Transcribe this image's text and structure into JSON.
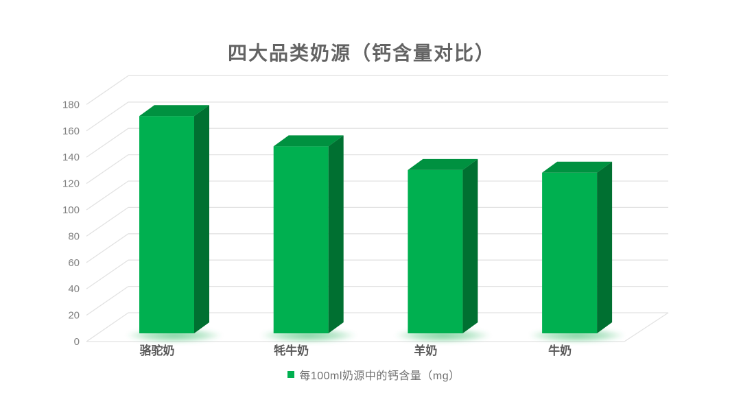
{
  "title": "四大品类奶源（钙含量对比）",
  "legend": {
    "label": "每100ml奶源中的钙含量（mg）",
    "marker_color": "#00B050"
  },
  "colors": {
    "title_text": "#636363",
    "axis_tick_text": "#808080",
    "category_text": "#595959",
    "legend_text": "#6e6e6e",
    "gridline": "#e2e2e2",
    "bar_front": "#00B050",
    "bar_top": "#009140",
    "bar_side": "#007031",
    "glow": "#3dbd6e",
    "background": "#ffffff"
  },
  "chart_data": {
    "type": "bar",
    "variant": "3d-column",
    "title": "四大品类奶源（钙含量对比）",
    "categories": [
      "骆驼奶",
      "牦牛奶",
      "羊奶",
      "牛奶"
    ],
    "series": [
      {
        "name": "每100ml奶源中的钙含量（mg）",
        "values": [
          165,
          142,
          124,
          122
        ]
      }
    ],
    "xlabel": "",
    "ylabel": "",
    "ylim": [
      0,
      180
    ],
    "yticks": [
      0,
      20,
      40,
      60,
      80,
      100,
      120,
      140,
      160,
      180
    ],
    "grid": true,
    "legend_position": "bottom"
  }
}
